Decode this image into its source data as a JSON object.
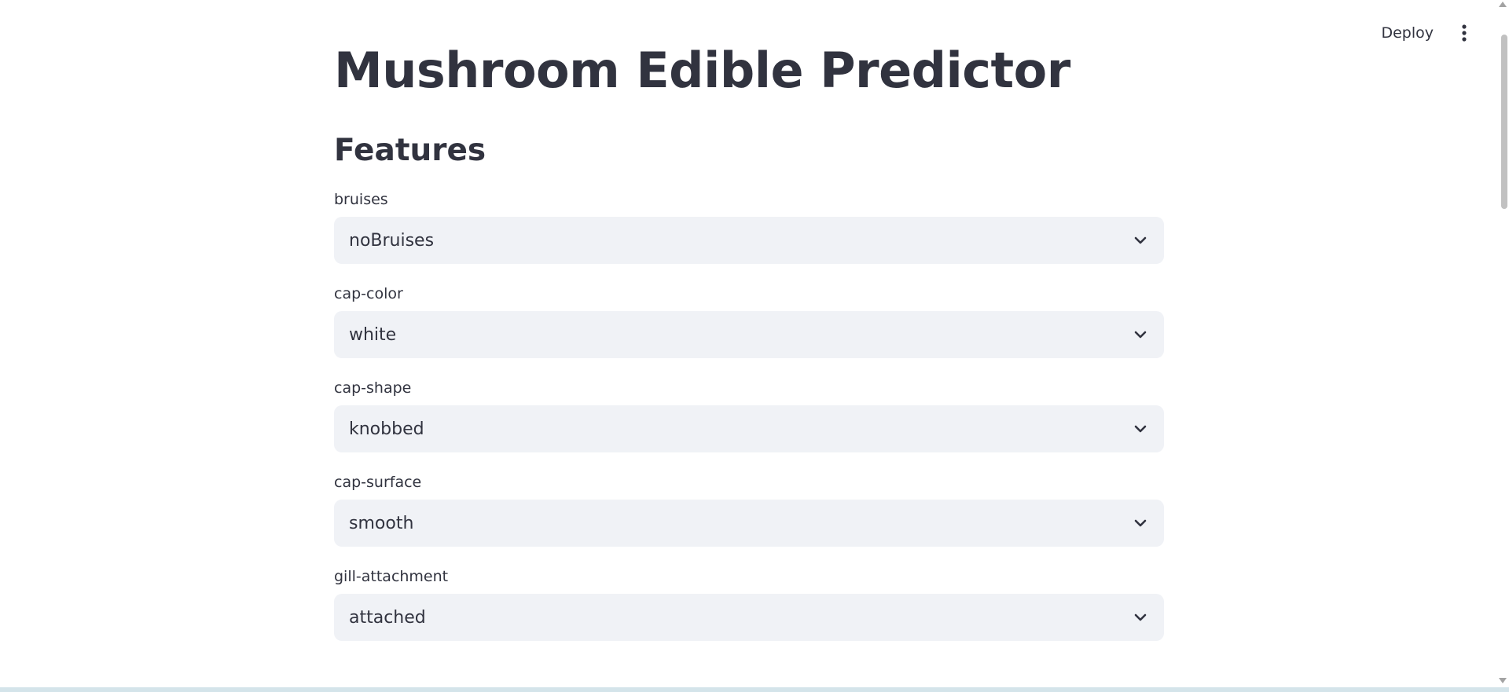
{
  "header": {
    "deploy_label": "Deploy",
    "menu_icon": "vertical-ellipsis-icon"
  },
  "main": {
    "title": "Mushroom Edible Predictor",
    "section_title": "Features",
    "fields": [
      {
        "label": "bruises",
        "value": "noBruises"
      },
      {
        "label": "cap-color",
        "value": "white"
      },
      {
        "label": "cap-shape",
        "value": "knobbed"
      },
      {
        "label": "cap-surface",
        "value": "smooth"
      },
      {
        "label": "gill-attachment",
        "value": "attached"
      }
    ]
  },
  "colors": {
    "text": "#31333f",
    "select_bg": "#f0f2f6",
    "background": "#ffffff"
  }
}
